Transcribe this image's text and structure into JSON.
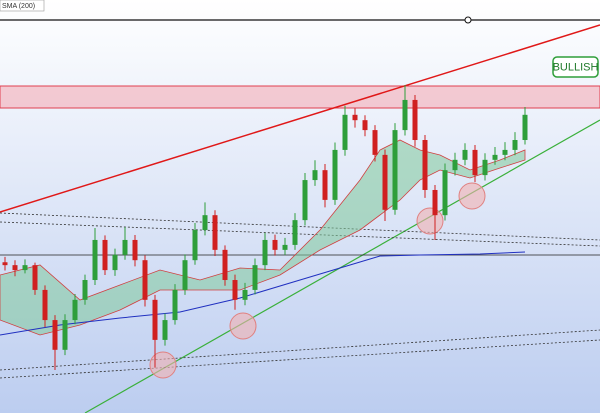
{
  "labels": {
    "indicator": "SMA (200)",
    "signal": "BULLISH"
  },
  "chart_data": {
    "type": "candlestick",
    "ylim": [
      0,
      100
    ],
    "up_color": "#2e9e3a",
    "down_color": "#d02020",
    "open": [
      36.5,
      35.8,
      34.6,
      35.8,
      29.8,
      22.5,
      15.3,
      22.5,
      27.4,
      32.2,
      41.9,
      34.6,
      38.3,
      41.9,
      37.0,
      27.4,
      17.7,
      22.5,
      29.8,
      37.0,
      44.3,
      47.9,
      39.5,
      32.2,
      27.4,
      29.8,
      35.8,
      41.9,
      39.5,
      40.7,
      46.7,
      56.4,
      58.8,
      51.6,
      63.7,
      72.2,
      70.9,
      68.5,
      62.5,
      49.2,
      68.5,
      75.8,
      66.1,
      54.0,
      47.9,
      58.8,
      61.3,
      63.7,
      57.6,
      61.3,
      62.5,
      63.7,
      66.1
    ],
    "high": [
      37.8,
      37.0,
      37.2,
      36.4,
      30.9,
      23.7,
      23.9,
      28.8,
      33.5,
      44.8,
      43.0,
      39.8,
      45.0,
      43.1,
      38.2,
      28.6,
      24.1,
      31.2,
      38.4,
      46.0,
      51.0,
      49.1,
      40.6,
      33.5,
      31.5,
      37.4,
      43.6,
      43.2,
      42.4,
      48.4,
      58.1,
      61.2,
      60.3,
      65.5,
      74.4,
      73.8,
      72.1,
      69.7,
      63.8,
      70.2,
      79.4,
      77.0,
      67.3,
      55.2,
      60.4,
      63.0,
      65.3,
      64.9,
      62.9,
      64.4,
      65.6,
      68.0,
      74.1
    ],
    "low": [
      34.5,
      33.1,
      33.8,
      28.6,
      20.8,
      10.4,
      14.0,
      21.5,
      26.2,
      31.0,
      33.4,
      33.2,
      37.1,
      35.5,
      25.8,
      11.0,
      16.3,
      21.4,
      28.6,
      35.9,
      43.0,
      38.0,
      30.8,
      25.0,
      26.1,
      28.7,
      34.6,
      38.1,
      38.3,
      39.5,
      45.4,
      55.0,
      49.8,
      50.4,
      62.3,
      69.1,
      67.0,
      60.9,
      46.5,
      48.0,
      67.2,
      64.5,
      52.1,
      41.9,
      46.6,
      57.5,
      60.0,
      55.9,
      56.3,
      60.1,
      61.2,
      62.4,
      65.0
    ],
    "close": [
      35.8,
      34.6,
      35.8,
      29.8,
      22.5,
      15.3,
      22.5,
      27.4,
      32.2,
      41.9,
      34.6,
      38.3,
      41.9,
      37.0,
      27.4,
      17.7,
      22.5,
      29.8,
      37.0,
      44.3,
      47.9,
      39.5,
      32.2,
      27.4,
      29.8,
      35.8,
      41.9,
      39.5,
      40.7,
      46.7,
      56.4,
      58.8,
      51.6,
      63.7,
      72.2,
      70.9,
      68.5,
      62.5,
      49.2,
      68.5,
      75.8,
      66.1,
      54.0,
      47.9,
      58.8,
      61.3,
      63.7,
      57.6,
      61.3,
      62.5,
      63.7,
      66.1,
      72.2
    ]
  }
}
